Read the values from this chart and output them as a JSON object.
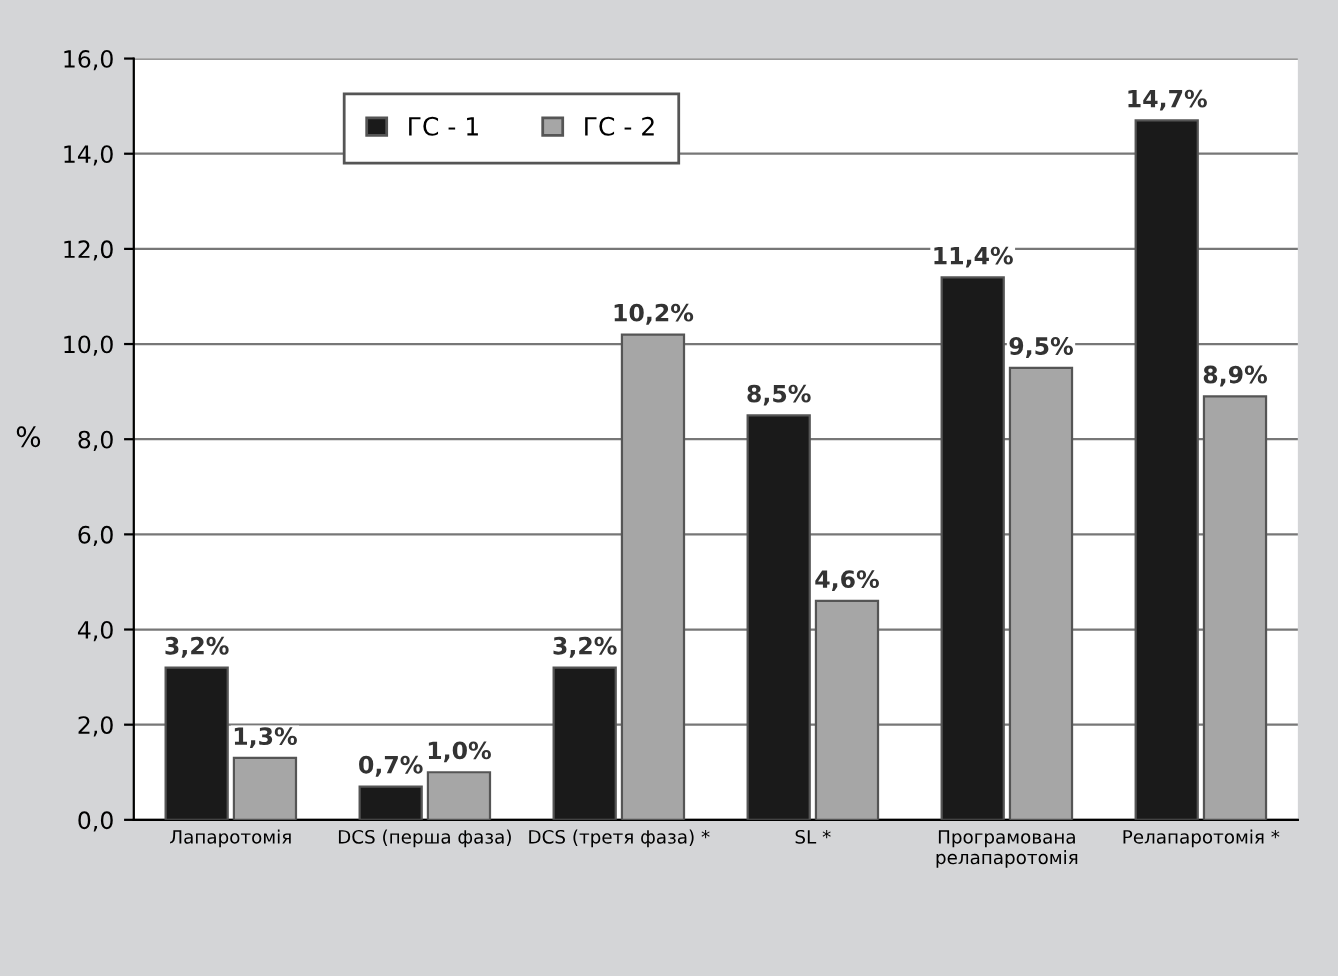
{
  "chart_data": {
    "type": "bar",
    "ylabel": "%",
    "categories": [
      "Лапаротомія",
      "DCS (перша фаза)",
      "DCS (третя фаза) *",
      "SL *",
      "Програмована\nрелапаротомія",
      "Релапаротомія *"
    ],
    "series": [
      {
        "name": "ГС - 1",
        "color": "#1a1a1a",
        "values": [
          3.2,
          0.7,
          3.2,
          8.5,
          11.4,
          14.7
        ],
        "value_labels": [
          "3,2%",
          "0,7%",
          "3,2%",
          "8,5%",
          "11,4%",
          "14,7%"
        ]
      },
      {
        "name": "ГС - 2",
        "color": "#a6a6a6",
        "values": [
          1.3,
          1.0,
          10.2,
          4.6,
          9.5,
          8.9
        ],
        "value_labels": [
          "1,3%",
          "1,0%",
          "10,2%",
          "4,6%",
          "9,5%",
          "8,9%"
        ]
      }
    ],
    "ylim": [
      0,
      16
    ],
    "yticks": [
      {
        "value": 0,
        "label": "0,0"
      },
      {
        "value": 2,
        "label": "2,0"
      },
      {
        "value": 4,
        "label": "4,0"
      },
      {
        "value": 6,
        "label": "6,0"
      },
      {
        "value": 8,
        "label": "8,0"
      },
      {
        "value": 10,
        "label": "10,0"
      },
      {
        "value": 12,
        "label": "12,0"
      },
      {
        "value": 14,
        "label": "14,0"
      },
      {
        "value": 16,
        "label": "16,0"
      }
    ],
    "grid": "y",
    "legend": "top left"
  }
}
